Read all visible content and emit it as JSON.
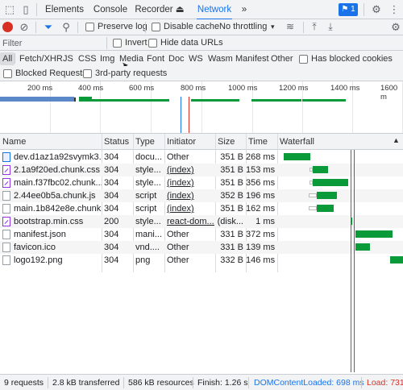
{
  "tabbar": {
    "tabs": [
      {
        "label": "Elements"
      },
      {
        "label": "Console"
      },
      {
        "label": "Recorder ⏏"
      },
      {
        "label": "Network"
      },
      {
        "label": "»"
      }
    ],
    "issues_badge": "⚑ 1"
  },
  "toolbar": {
    "preserve_log": "Preserve log",
    "disable_cache": "Disable cache",
    "throttling": "No throttling"
  },
  "filter": {
    "placeholder": "Filter",
    "invert": "Invert",
    "hide_data_urls": "Hide data URLs"
  },
  "types": [
    "All",
    "Fetch/XHR",
    "JS",
    "CSS",
    "Img",
    "Media",
    "Font",
    "Doc",
    "WS",
    "Wasm",
    "Manifest",
    "Other"
  ],
  "has_blocked_cookies": "Has blocked cookies",
  "blocked_requests": "Blocked Requests",
  "third_party": "3rd-party requests",
  "overview": {
    "ticks": [
      "200 ms",
      "400 ms",
      "600 ms",
      "800 ms",
      "1000 ms",
      "1200 ms",
      "1400 ms",
      "1600 m"
    ]
  },
  "table": {
    "headers": {
      "name": "Name",
      "status": "Status",
      "type": "Type",
      "initiator": "Initiator",
      "size": "Size",
      "time": "Time",
      "waterfall": "Waterfall"
    },
    "rows": [
      {
        "name": "dev.d1az1a92svymk3....",
        "status": "304",
        "type": "docu...",
        "initiator": "Other",
        "size": "351 B",
        "time": "268 ms",
        "icon": "doc"
      },
      {
        "name": "2.1a9f20ed.chunk.css",
        "status": "304",
        "type": "style...",
        "initiator": "(index)",
        "size": "351 B",
        "time": "153 ms",
        "icon": "css"
      },
      {
        "name": "main.f37fbc02.chunk....",
        "status": "304",
        "type": "style...",
        "initiator": "(index)",
        "size": "351 B",
        "time": "356 ms",
        "icon": "css"
      },
      {
        "name": "2.44ee0b5a.chunk.js",
        "status": "304",
        "type": "script",
        "initiator": "(index)",
        "size": "352 B",
        "time": "196 ms",
        "icon": "js"
      },
      {
        "name": "main.1b842e8e.chunk.js",
        "status": "304",
        "type": "script",
        "initiator": "(index)",
        "size": "351 B",
        "time": "162 ms",
        "icon": "js"
      },
      {
        "name": "bootstrap.min.css",
        "status": "200",
        "type": "style...",
        "initiator": "react-dom....",
        "size": "(disk...",
        "time": "1 ms",
        "icon": "css"
      },
      {
        "name": "manifest.json",
        "status": "304",
        "type": "mani...",
        "initiator": "Other",
        "size": "331 B",
        "time": "372 ms",
        "icon": "file"
      },
      {
        "name": "favicon.ico",
        "status": "304",
        "type": "vnd....",
        "initiator": "Other",
        "size": "331 B",
        "time": "139 ms",
        "icon": "file"
      },
      {
        "name": "logo192.png",
        "status": "304",
        "type": "png",
        "initiator": "Other",
        "size": "332 B",
        "time": "146 ms",
        "icon": "file"
      }
    ]
  },
  "status": {
    "requests": "9 requests",
    "transferred": "2.8 kB transferred",
    "resources": "586 kB resources",
    "finish": "Finish: 1.26 s",
    "dcl": "DOMContentLoaded: 698 ms",
    "load": "Load: 731"
  },
  "colors": {
    "accent": "#1a73e8",
    "bar": "#0a9a3a",
    "load": "#d93025"
  }
}
